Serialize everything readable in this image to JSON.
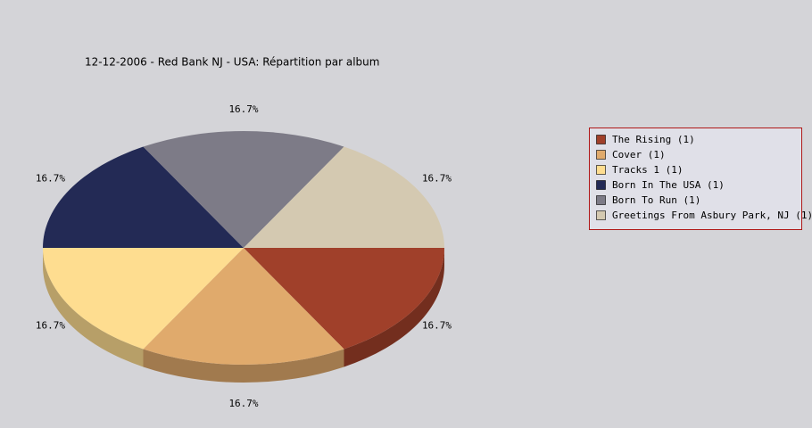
{
  "chart_data": {
    "type": "pie",
    "title": "12-12-2006 - Red Bank NJ - USA:  Répartition par album",
    "categories": [
      "The Rising (1)",
      "Cover (1)",
      "Tracks 1 (1)",
      "Born In The USA (1)",
      "Born To Run (1)",
      "Greetings From Asbury Park, NJ (1)"
    ],
    "values": [
      16.7,
      16.7,
      16.7,
      16.7,
      16.7,
      16.7
    ],
    "value_labels": [
      "16.7%",
      "16.7%",
      "16.7%",
      "16.7%",
      "16.7%",
      "16.7%"
    ],
    "colors": [
      "#a0402a",
      "#e0aa6c",
      "#fedd90",
      "#232a55",
      "#7d7b87",
      "#d4c9b1"
    ],
    "legend": "right"
  }
}
